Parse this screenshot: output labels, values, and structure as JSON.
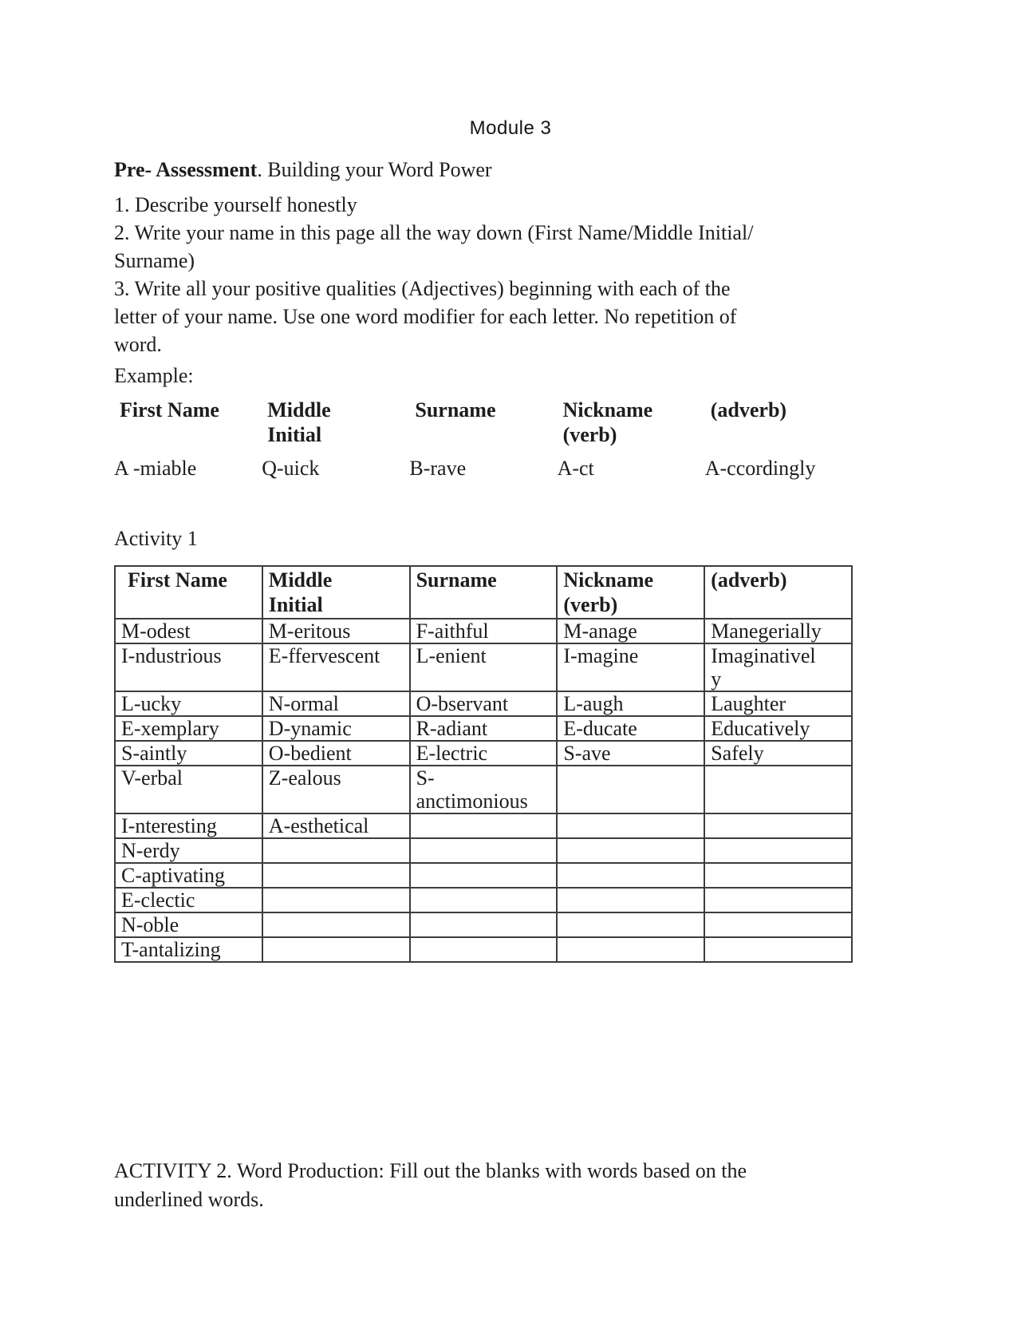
{
  "colors": {
    "background": "#ffffff",
    "text": "#1d1d1d",
    "table_border": "#3d3d3d"
  },
  "doc": {
    "title": "Module 3",
    "heading": {
      "bold_part": "Pre- Assessment",
      "rest_part": ". Building your Word Power"
    },
    "instructions": [
      "1. Describe yourself honestly",
      "2. Write your name in this page all the way down (First Name/Middle Initial/\nSurname)",
      "3. Write all your positive qualities (Adjectives) beginning with each of the\nletter of your name. Use one word modifier for each letter. No repetition of\nword."
    ],
    "example_label": "Example:",
    "example_table": {
      "headers": [
        "First Name",
        "Middle\nInitial",
        "Surname",
        "Nickname\n(verb)",
        "(adverb)"
      ],
      "row": [
        "A -miable",
        "Q-uick",
        "B-rave",
        "A-ct",
        "A-ccordingly"
      ]
    },
    "activity1_label": "Activity 1",
    "activity1_table": {
      "headers": [
        "First Name",
        "Middle\nInitial",
        "Surname",
        "Nickname\n(verb)",
        "(adverb)"
      ],
      "rows": [
        [
          "M-odest",
          "M-eritous",
          "F-aithful",
          "M-anage",
          "Manegerially"
        ],
        [
          "I-ndustrious",
          "E-ffervescent",
          "L-enient",
          "I-magine",
          "Imaginativel\ny"
        ],
        [
          "L-ucky",
          "N-ormal",
          "O-bservant",
          "L-augh",
          "Laughter"
        ],
        [
          "E-xemplary",
          "D-ynamic",
          "R-adiant",
          "E-ducate",
          "Educatively"
        ],
        [
          "S-aintly",
          "O-bedient",
          "E-lectric",
          "S-ave",
          "Safely"
        ],
        [
          "V-erbal",
          "Z-ealous",
          "S-\nanctimonious",
          "",
          ""
        ],
        [
          "I-nteresting",
          "A-esthetical",
          "",
          "",
          ""
        ],
        [
          "N-erdy",
          "",
          "",
          "",
          ""
        ],
        [
          "C-aptivating",
          "",
          "",
          "",
          ""
        ],
        [
          "E-clectic",
          "",
          "",
          "",
          ""
        ],
        [
          "N-oble",
          "",
          "",
          "",
          ""
        ],
        [
          "T-antalizing",
          "",
          "",
          "",
          ""
        ]
      ]
    },
    "activity2_text": "ACTIVITY 2. Word Production: Fill out the blanks with words based on the\nunderlined words."
  }
}
